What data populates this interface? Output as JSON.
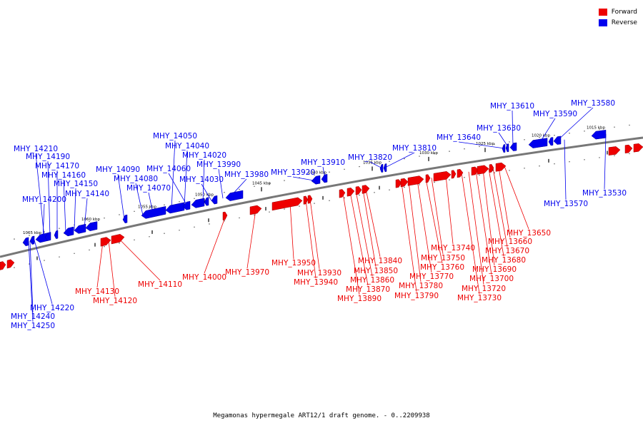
{
  "legend": {
    "forward": {
      "label": "Forward",
      "color": "#ee0000"
    },
    "reverse": {
      "label": "Reverse",
      "color": "#0000ee"
    }
  },
  "caption": "Megamonas hypermegale ART12/1 draft genome. - 0..2209938",
  "backbone_color": "#777777",
  "ticks": [
    "1065 kbp",
    "1060 kbp",
    "1055 kbp",
    "1050 kbp",
    "1045 kbp",
    "1040 kbp",
    "1035 kbp",
    "1030 kbp",
    "1025 kbp",
    "1020 kbp",
    "1015 kbp"
  ],
  "reverse_genes": [
    "MHY_14210",
    "MHY_14190",
    "MHY_14170",
    "MHY_14160",
    "MHY_14150",
    "MHY_14140",
    "MHY_14200",
    "MHY_14090",
    "MHY_14080",
    "MHY_14070",
    "MHY_14050",
    "MHY_14040",
    "MHY_14060",
    "MHY_14020",
    "MHY_14030",
    "MHY_13990",
    "MHY_13980",
    "MHY_13920",
    "MHY_13910",
    "MHY_13820",
    "MHY_13810",
    "MHY_13640",
    "MHY_13630",
    "MHY_13610",
    "MHY_13590",
    "MHY_13580",
    "MHY_13570",
    "MHY_13530",
    "MHY_14220",
    "MHY_14240",
    "MHY_14250"
  ],
  "forward_genes": [
    "MHY_14130",
    "MHY_14120",
    "MHY_14110",
    "MHY_14000",
    "MHY_13970",
    "MHY_13950",
    "MHY_13930",
    "MHY_13940",
    "MHY_13840",
    "MHY_13850",
    "MHY_13860",
    "MHY_13870",
    "MHY_13890",
    "MHY_13740",
    "MHY_13750",
    "MHY_13760",
    "MHY_13770",
    "MHY_13780",
    "MHY_13790",
    "MHY_13650",
    "MHY_13660",
    "MHY_13670",
    "MHY_13680",
    "MHY_13690",
    "MHY_13700",
    "MHY_13720",
    "MHY_13730"
  ]
}
